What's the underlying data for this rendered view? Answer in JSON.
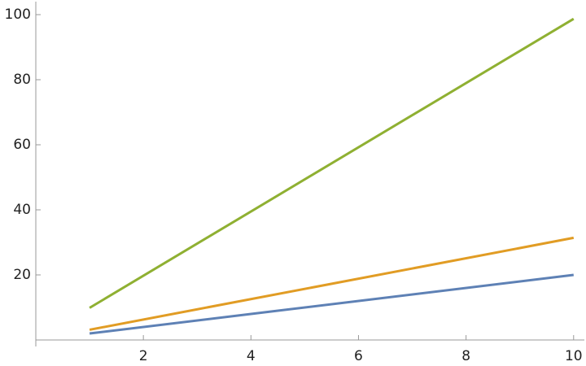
{
  "chart_data": {
    "type": "line",
    "x": [
      1,
      10
    ],
    "series": [
      {
        "color": "#5e81b5",
        "values": [
          2,
          20
        ]
      },
      {
        "color": "#e19c24",
        "values": [
          3.14,
          31.4
        ]
      },
      {
        "color": "#8fb032",
        "values": [
          9.87,
          98.7
        ]
      }
    ],
    "xlim": [
      0,
      10.2
    ],
    "ylim": [
      0,
      104
    ],
    "xticks": [
      2,
      4,
      6,
      8,
      10
    ],
    "yticks": [
      20,
      40,
      60,
      80,
      100
    ]
  }
}
